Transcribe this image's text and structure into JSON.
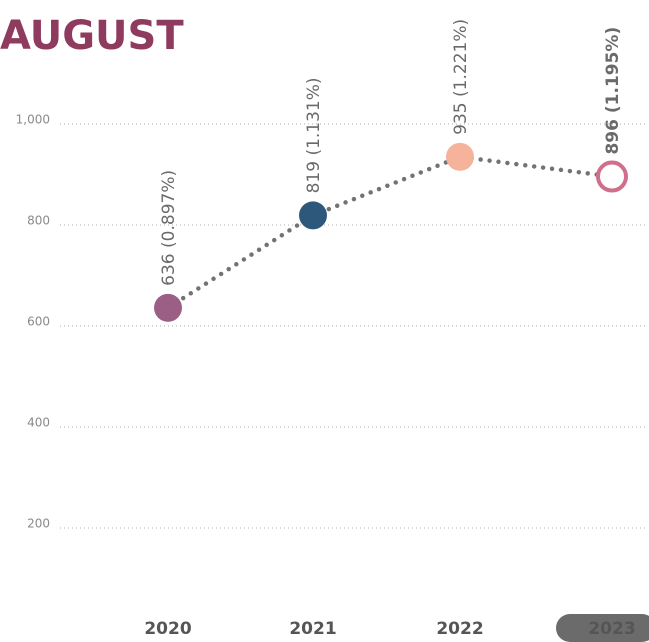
{
  "chart_data": {
    "type": "line",
    "title": "AUGUST",
    "categories": [
      "2020",
      "2021",
      "2022",
      "2023"
    ],
    "values": [
      636,
      819,
      935,
      896
    ],
    "value_labels": [
      "636 (0.897%)",
      "819 (1.131%)",
      "935 (1.221%)",
      "896 (1.195%)"
    ],
    "colors": [
      "#9b5f86",
      "#2e587b",
      "#f6b39b",
      "#cf6f8c"
    ],
    "line_color": "#737373",
    "ylim": [
      0,
      1000
    ],
    "yticks": [
      200,
      400,
      600,
      800,
      {
        "value": 1000,
        "label": "1,000"
      }
    ],
    "grid": true
  }
}
